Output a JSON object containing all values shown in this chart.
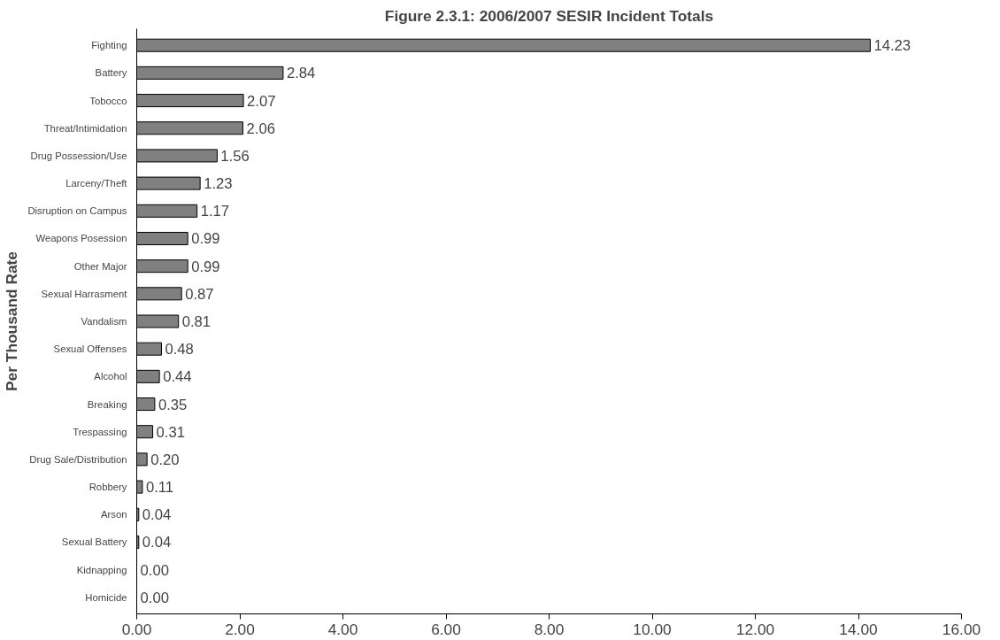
{
  "chart_data": {
    "type": "bar",
    "orientation": "horizontal",
    "title": "Figure 2.3.1: 2006/2007 SESIR Incident Totals",
    "ylabel": "Per Thousand Rate",
    "categories": [
      "Fighting",
      "Battery",
      "Tobocco",
      "Threat/Intimidation",
      "Drug Possession/Use",
      "Larceny/Theft",
      "Disruption on Campus",
      "Weapons Posession",
      "Other Major",
      "Sexual Harrasment",
      "Vandalism",
      "Sexual Offenses",
      "Alcohol",
      "Breaking",
      "Trespassing",
      "Drug Sale/Distribution",
      "Robbery",
      "Arson",
      "Sexual Battery",
      "Kidnapping",
      "Homicide"
    ],
    "values": [
      14.23,
      2.84,
      2.07,
      2.06,
      1.56,
      1.23,
      1.17,
      0.99,
      0.99,
      0.87,
      0.81,
      0.48,
      0.44,
      0.35,
      0.31,
      0.2,
      0.11,
      0.04,
      0.04,
      0.0,
      0.0
    ],
    "value_labels": [
      "14.23",
      "2.84",
      "2.07",
      "2.06",
      "1.56",
      "1.23",
      "1.17",
      "0.99",
      "0.99",
      "0.87",
      "0.81",
      "0.48",
      "0.44",
      "0.35",
      "0.31",
      "0.20",
      "0.11",
      "0.04",
      "0.04",
      "0.00",
      "0.00"
    ],
    "color": "#808080",
    "xlim": [
      0,
      16
    ],
    "xticks": [
      {
        "value": 0,
        "label": "0.00"
      },
      {
        "value": 2,
        "label": "2.00"
      },
      {
        "value": 4,
        "label": "4.00"
      },
      {
        "value": 6,
        "label": "6.00"
      },
      {
        "value": 8,
        "label": "8.00"
      },
      {
        "value": 10,
        "label": "10.00"
      },
      {
        "value": 12,
        "label": "12.00"
      },
      {
        "value": 14,
        "label": "14.00"
      },
      {
        "value": 16,
        "label": "16.00"
      }
    ],
    "grid": false
  }
}
